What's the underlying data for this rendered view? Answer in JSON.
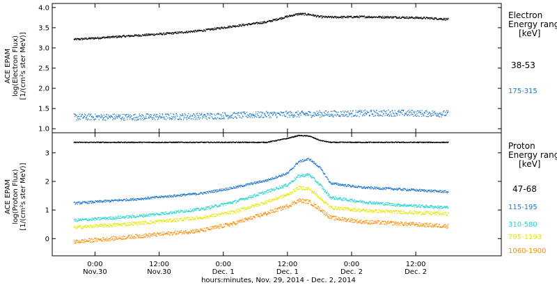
{
  "chart_data": [
    {
      "type": "scatter",
      "panel": "electron",
      "ylabel": [
        "ACE EPAM",
        "log(Electron Flux)",
        "[1/(cm²s ster MeV)]"
      ],
      "ylim": [
        0.9,
        4.1
      ],
      "yticks": [
        1.0,
        1.5,
        2.0,
        2.5,
        3.0,
        3.5,
        4.0
      ],
      "ytick_labels": [
        "1.0",
        "1.5",
        "2.0",
        "2.5",
        "3.0",
        "3.5",
        "4.0"
      ],
      "legend": {
        "title": [
          "Electron",
          "Energy ranges",
          "[keV]"
        ],
        "entries": [
          {
            "label": "38-53",
            "color": "#000000"
          },
          {
            "label": "175-315",
            "color": "#1f78d0"
          }
        ]
      },
      "series": [
        {
          "name": "38-53",
          "color": "#000000",
          "noise": 0.025,
          "x": [
            0,
            6,
            12,
            18,
            24,
            30,
            36,
            40,
            42,
            44,
            46,
            48,
            54,
            60,
            66,
            70
          ],
          "y": [
            3.22,
            3.27,
            3.32,
            3.37,
            3.44,
            3.55,
            3.65,
            3.79,
            3.85,
            3.84,
            3.78,
            3.77,
            3.78,
            3.77,
            3.75,
            3.72
          ]
        },
        {
          "name": "175-315",
          "color": "#1f78d0",
          "noise": 0.08,
          "x": [
            0,
            12,
            24,
            36,
            48,
            60,
            70
          ],
          "y": [
            1.3,
            1.3,
            1.32,
            1.36,
            1.38,
            1.4,
            1.38
          ]
        }
      ]
    },
    {
      "type": "scatter",
      "panel": "proton",
      "ylabel": [
        "ACE EPAM",
        "log(Proton Flux)",
        "[1/(cm²s ster MeV)]"
      ],
      "ylim": [
        -0.6,
        3.7
      ],
      "yticks": [
        0,
        1,
        2,
        3
      ],
      "ytick_labels": [
        "0",
        "1",
        "2",
        "3"
      ],
      "legend": {
        "title": [
          "Proton",
          "Energy ranges",
          "[keV]"
        ],
        "entries": [
          {
            "label": "47-68",
            "color": "#000000"
          },
          {
            "label": "115-195",
            "color": "#1f78d0"
          },
          {
            "label": "310-580",
            "color": "#22d3cc"
          },
          {
            "label": "795-1193",
            "color": "#e6e600"
          },
          {
            "label": "1060-1900",
            "color": "#ff8a00"
          }
        ]
      },
      "series": [
        {
          "name": "47-68",
          "color": "#000000",
          "noise": 0.015,
          "x": [
            0,
            36,
            40,
            42,
            44,
            46,
            48,
            70
          ],
          "y": [
            3.38,
            3.38,
            3.52,
            3.62,
            3.6,
            3.45,
            3.38,
            3.38
          ]
        },
        {
          "name": "115-195",
          "color": "#1f78d0",
          "noise": 0.04,
          "x": [
            0,
            12,
            24,
            30,
            36,
            40,
            42,
            44,
            46,
            48,
            54,
            60,
            70
          ],
          "y": [
            1.25,
            1.4,
            1.6,
            1.8,
            2.05,
            2.3,
            2.7,
            2.8,
            2.5,
            1.95,
            1.8,
            1.75,
            1.65
          ]
        },
        {
          "name": "310-580",
          "color": "#22d3cc",
          "noise": 0.05,
          "x": [
            0,
            12,
            24,
            30,
            36,
            40,
            42,
            44,
            46,
            48,
            54,
            60,
            70
          ],
          "y": [
            0.65,
            0.8,
            1.05,
            1.3,
            1.65,
            1.9,
            2.2,
            2.25,
            1.9,
            1.45,
            1.3,
            1.2,
            1.1
          ]
        },
        {
          "name": "795-1193",
          "color": "#e6e600",
          "noise": 0.06,
          "x": [
            0,
            12,
            24,
            30,
            36,
            40,
            42,
            44,
            46,
            48,
            54,
            60,
            70
          ],
          "y": [
            0.4,
            0.55,
            0.75,
            0.95,
            1.3,
            1.55,
            1.8,
            1.75,
            1.45,
            1.1,
            1.0,
            0.95,
            0.88
          ]
        },
        {
          "name": "1060-1900",
          "color": "#ff8a00",
          "noise": 0.07,
          "x": [
            0,
            12,
            24,
            30,
            36,
            40,
            42,
            44,
            46,
            48,
            54,
            60,
            70
          ],
          "y": [
            -0.1,
            0.1,
            0.3,
            0.55,
            0.9,
            1.15,
            1.35,
            1.3,
            1.05,
            0.75,
            0.6,
            0.55,
            0.45
          ]
        }
      ]
    }
  ],
  "xaxis": {
    "xlim": [
      -4,
      80
    ],
    "ticks": [
      {
        "x": 4,
        "time": "0:00",
        "date": "Nov.30"
      },
      {
        "x": 16,
        "time": "12:00",
        "date": "Nov.30"
      },
      {
        "x": 28,
        "time": "0:00",
        "date": "Dec. 1"
      },
      {
        "x": 40,
        "time": "12:00",
        "date": "Dec. 1"
      },
      {
        "x": 52,
        "time": "0:00",
        "date": "Dec. 2"
      },
      {
        "x": 64,
        "time": "12:00",
        "date": "Dec. 2"
      }
    ],
    "xlabel": "hours:minutes, Nov. 29, 2014 - Dec. 2, 2014"
  }
}
